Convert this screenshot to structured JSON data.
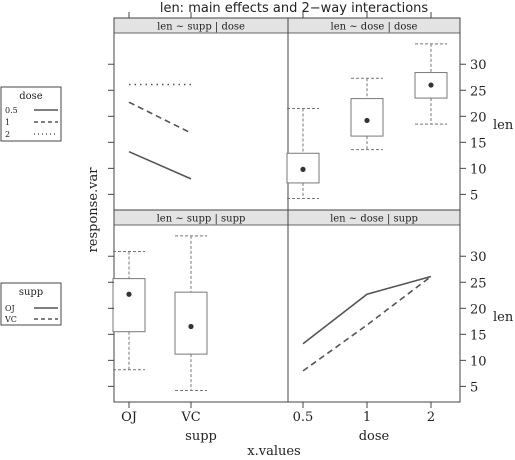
{
  "title": "len: main effects and 2−way interactions",
  "ylabel_left": "response.var",
  "xlabel_bottom": "x.values",
  "ylabel_right": "len",
  "panels": {
    "tl": {
      "strip": "len ~ supp | dose"
    },
    "tr": {
      "strip": "len ~ dose | dose"
    },
    "bl": {
      "strip": "len ~ supp | supp"
    },
    "br": {
      "strip": "len ~ dose | supp"
    }
  },
  "x_axes": {
    "left": {
      "label": "supp",
      "ticks": [
        "OJ",
        "VC"
      ]
    },
    "right": {
      "label": "dose",
      "ticks": [
        "0.5",
        "1",
        "2"
      ]
    }
  },
  "y_axis": {
    "ticks": [
      "5",
      "10",
      "15",
      "20",
      "25",
      "30"
    ]
  },
  "legends": {
    "dose": {
      "title": "dose",
      "entries": [
        "0.5",
        "1",
        "2"
      ]
    },
    "supp": {
      "title": "supp",
      "entries": [
        "OJ",
        "VC"
      ]
    }
  },
  "chart_data": {
    "type": "line",
    "ylim": [
      2,
      36
    ],
    "panels": [
      {
        "id": "tl",
        "kind": "interaction-lines",
        "categories": [
          "OJ",
          "VC"
        ],
        "series": [
          {
            "name": "0.5",
            "style": "solid",
            "values": [
              13.2,
              7.98
            ]
          },
          {
            "name": "1",
            "style": "dashed",
            "values": [
              22.7,
              16.8
            ]
          },
          {
            "name": "2",
            "style": "dotted",
            "values": [
              26.1,
              26.1
            ]
          }
        ]
      },
      {
        "id": "tr",
        "kind": "boxplot",
        "categories": [
          "0.5",
          "1",
          "2"
        ],
        "boxes": [
          {
            "min": 4.2,
            "q1": 7.2,
            "median": 9.8,
            "q3": 12.9,
            "max": 21.5
          },
          {
            "min": 13.6,
            "q1": 16.2,
            "median": 19.2,
            "q3": 23.4,
            "max": 27.3
          },
          {
            "min": 18.5,
            "q1": 23.5,
            "median": 26.0,
            "q3": 28.4,
            "max": 33.9
          }
        ]
      },
      {
        "id": "bl",
        "kind": "boxplot",
        "categories": [
          "OJ",
          "VC"
        ],
        "boxes": [
          {
            "min": 8.2,
            "q1": 15.5,
            "median": 22.7,
            "q3": 25.7,
            "max": 30.9
          },
          {
            "min": 4.2,
            "q1": 11.2,
            "median": 16.5,
            "q3": 23.1,
            "max": 33.9
          }
        ]
      },
      {
        "id": "br",
        "kind": "interaction-lines",
        "categories": [
          "0.5",
          "1",
          "2"
        ],
        "series": [
          {
            "name": "OJ",
            "style": "solid",
            "values": [
              13.2,
              22.7,
              26.1
            ]
          },
          {
            "name": "VC",
            "style": "dashed",
            "values": [
              7.98,
              16.8,
              26.1
            ]
          }
        ]
      }
    ]
  }
}
